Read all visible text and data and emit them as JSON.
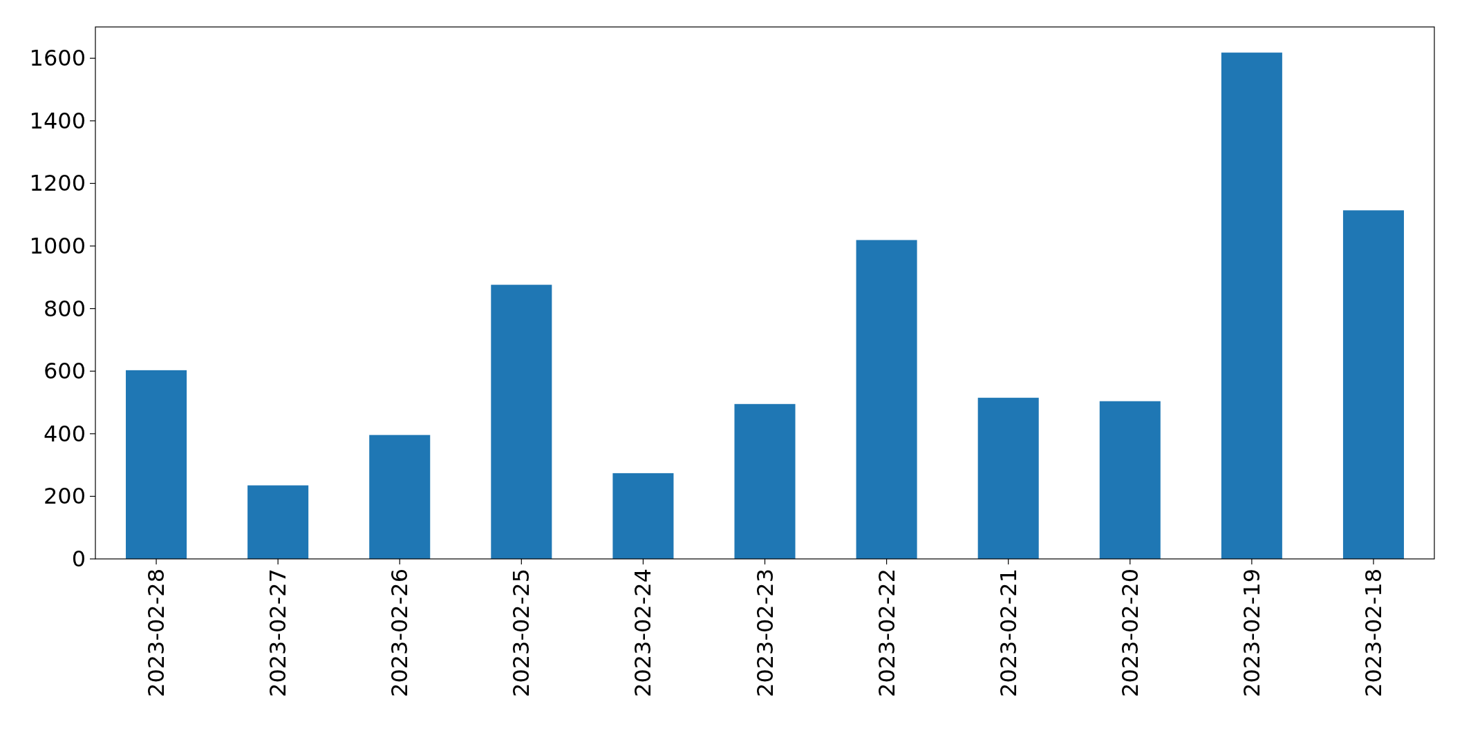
{
  "chart_data": {
    "type": "bar",
    "categories": [
      "2023-02-28",
      "2023-02-27",
      "2023-02-26",
      "2023-02-25",
      "2023-02-24",
      "2023-02-23",
      "2023-02-22",
      "2023-02-21",
      "2023-02-20",
      "2023-02-19",
      "2023-02-18"
    ],
    "values": [
      603,
      235,
      396,
      876,
      274,
      495,
      1019,
      515,
      504,
      1618,
      1114
    ],
    "color": "#1f77b4",
    "ylim": [
      0,
      1700
    ],
    "yticks": [
      0,
      200,
      400,
      600,
      800,
      1000,
      1200,
      1400,
      1600
    ],
    "grid": false
  }
}
